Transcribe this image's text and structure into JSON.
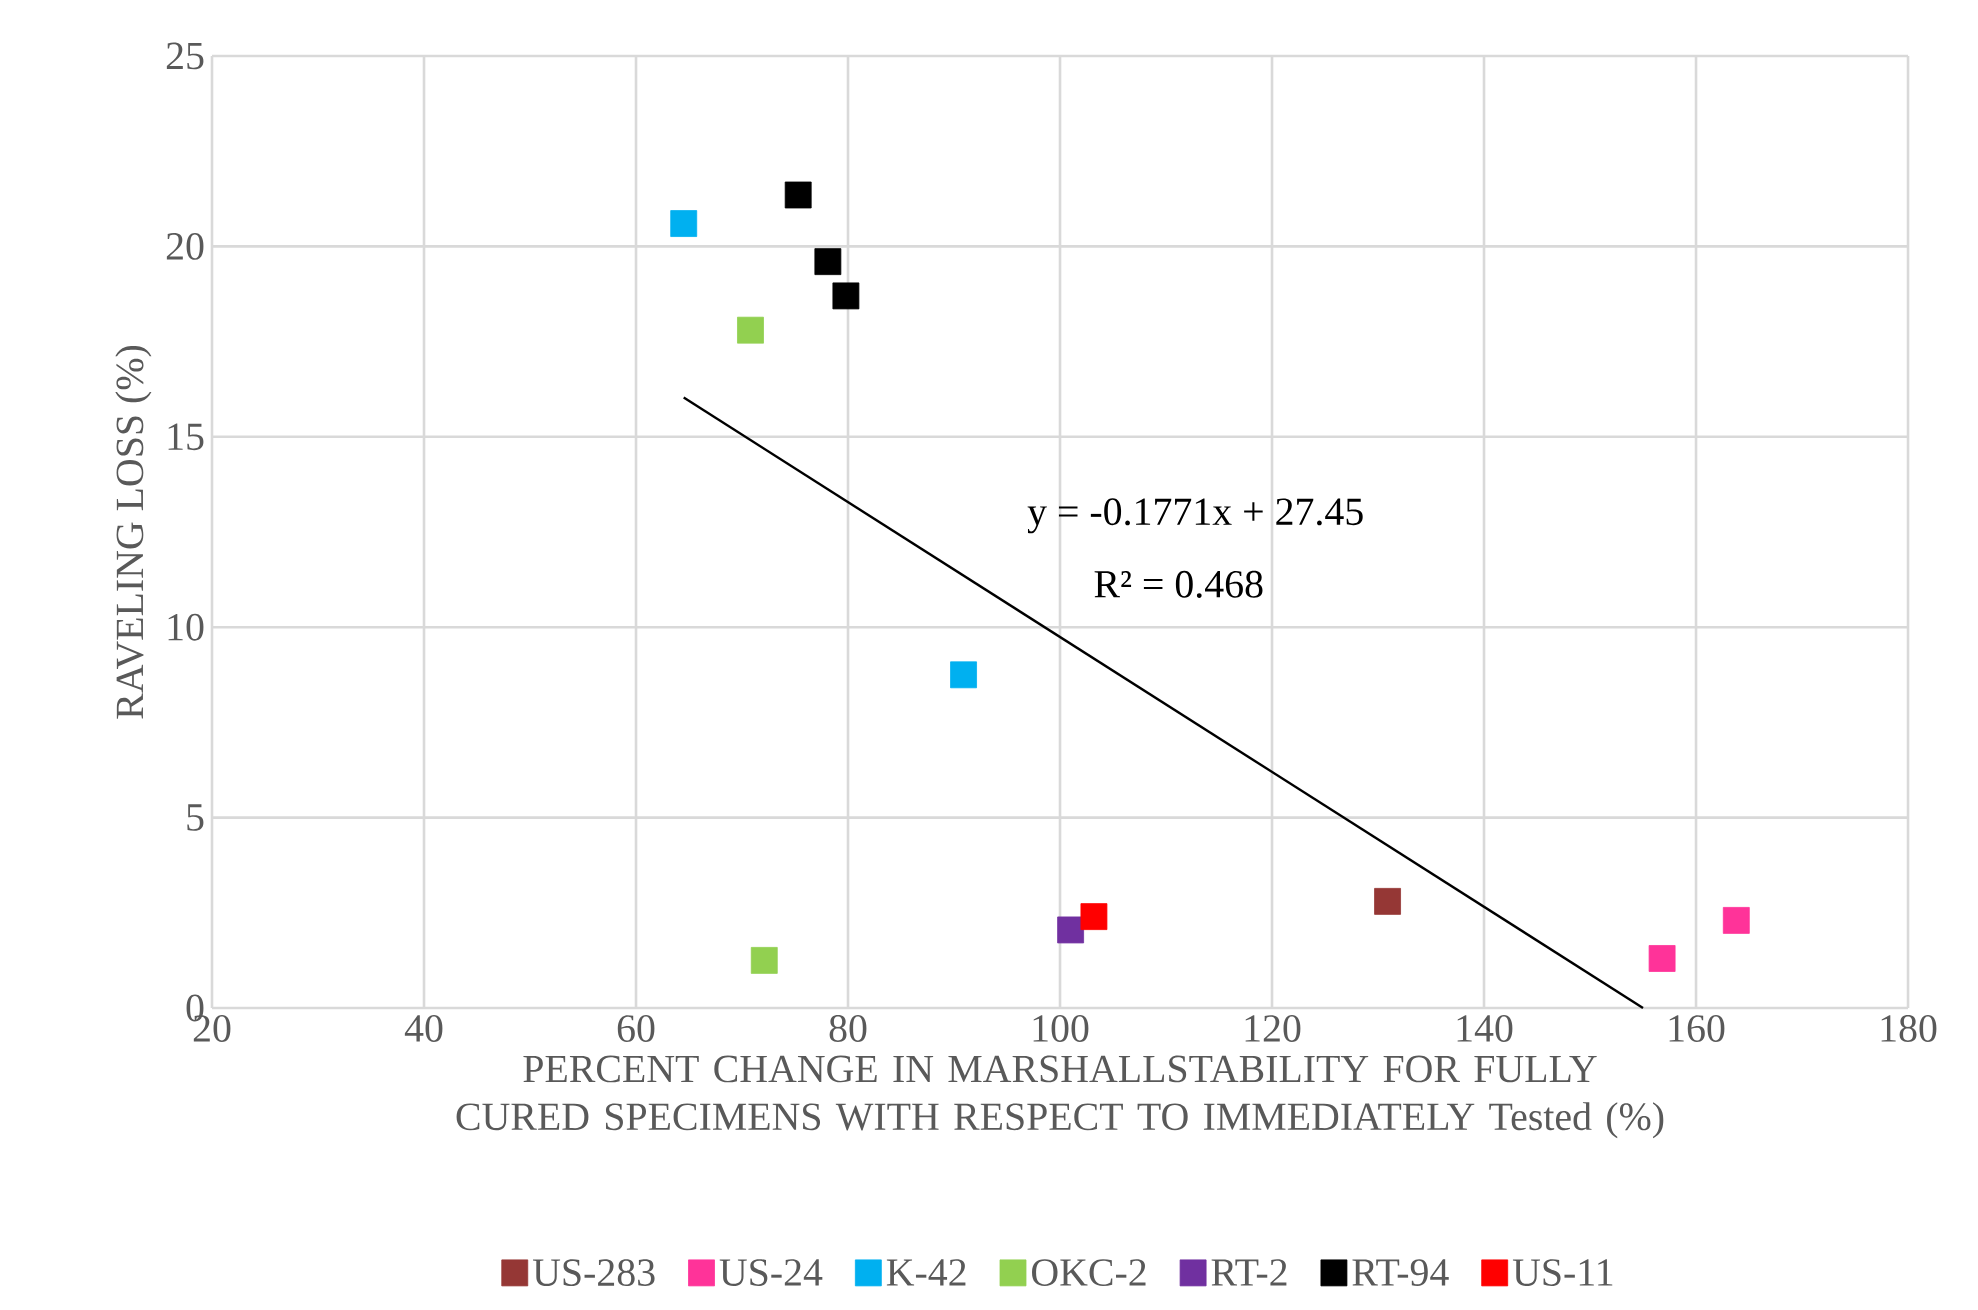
{
  "chart_data": {
    "type": "scatter",
    "xlabel": "PERCENT CHANGE IN MARSHALLSTABILITY FOR FULLY CURED SPECIMENS WITH RESPECT TO IMMEDIATELY Tested (%)",
    "ylabel": "RAVELING LOSS (%)",
    "annotations": [
      "y = -0.1771x + 27.45",
      "R² = 0.468"
    ],
    "xlim": [
      20,
      180
    ],
    "ylim": [
      0,
      25
    ],
    "xticks": [
      20,
      40,
      60,
      80,
      100,
      120,
      140,
      160,
      180
    ],
    "yticks": [
      0,
      5,
      10,
      15,
      20,
      25
    ],
    "grid": true,
    "legend": "bottom",
    "marker": "square",
    "series": [
      {
        "name": "US-283",
        "color": "#953735",
        "x": [
          130.9
        ],
        "values": [
          2.8
        ]
      },
      {
        "name": "US-24",
        "color": "#ff3399",
        "x": [
          156.8,
          163.8
        ],
        "values": [
          1.3,
          2.3
        ]
      },
      {
        "name": "K-42",
        "color": "#00b0f0",
        "x": [
          64.5,
          90.9
        ],
        "values": [
          20.6,
          8.75
        ]
      },
      {
        "name": "OKC-2",
        "color": "#92d050",
        "x": [
          70.8,
          72.1
        ],
        "values": [
          17.8,
          1.25
        ]
      },
      {
        "name": "RT-2",
        "color": "#7030a0",
        "x": [
          101
        ],
        "values": [
          2.05
        ]
      },
      {
        "name": "RT-94",
        "color": "#000000",
        "x": [
          75.3,
          78.1,
          79.8
        ],
        "values": [
          21.35,
          19.6,
          18.7
        ]
      },
      {
        "name": "US-11",
        "color": "#ff0000",
        "x": [
          103.2
        ],
        "values": [
          2.4
        ]
      },
      {
        "type": "line",
        "color": "#000000",
        "line_style": "solid",
        "marker": "none",
        "x": [
          64.5,
          155
        ],
        "values": [
          16.03,
          0
        ]
      }
    ]
  }
}
